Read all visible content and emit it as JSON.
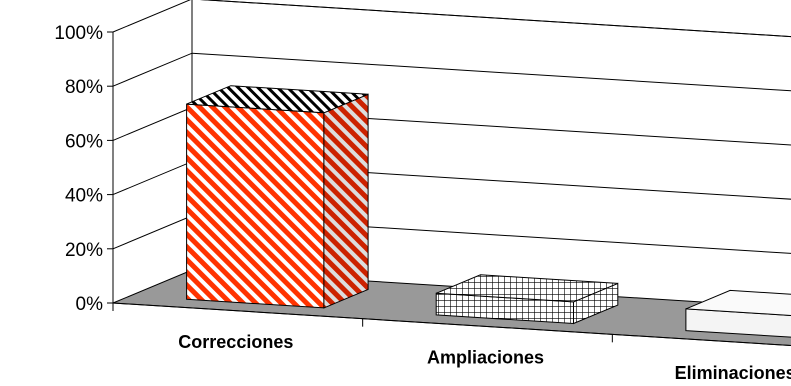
{
  "chart_data": {
    "type": "bar",
    "style": "3d-column",
    "title": "",
    "xlabel": "",
    "ylabel": "",
    "categories": [
      "Correcciones",
      "Ampliaciones",
      "Eliminaciones"
    ],
    "values": [
      72,
      8,
      8
    ],
    "ylim": [
      0,
      100
    ],
    "ytick_values": [
      0,
      20,
      40,
      60,
      80,
      100
    ],
    "yticks": [
      "0%",
      "20%",
      "40%",
      "60%",
      "80%",
      "100%"
    ],
    "grid": true,
    "legend": "none",
    "colors": {
      "floor": "#999999",
      "gridline": "#000000",
      "bar_fills": [
        "red-white-diagonal-stripes",
        "black-grid-checker",
        "#f2f2f2"
      ],
      "bar_outline": "#000000"
    }
  }
}
